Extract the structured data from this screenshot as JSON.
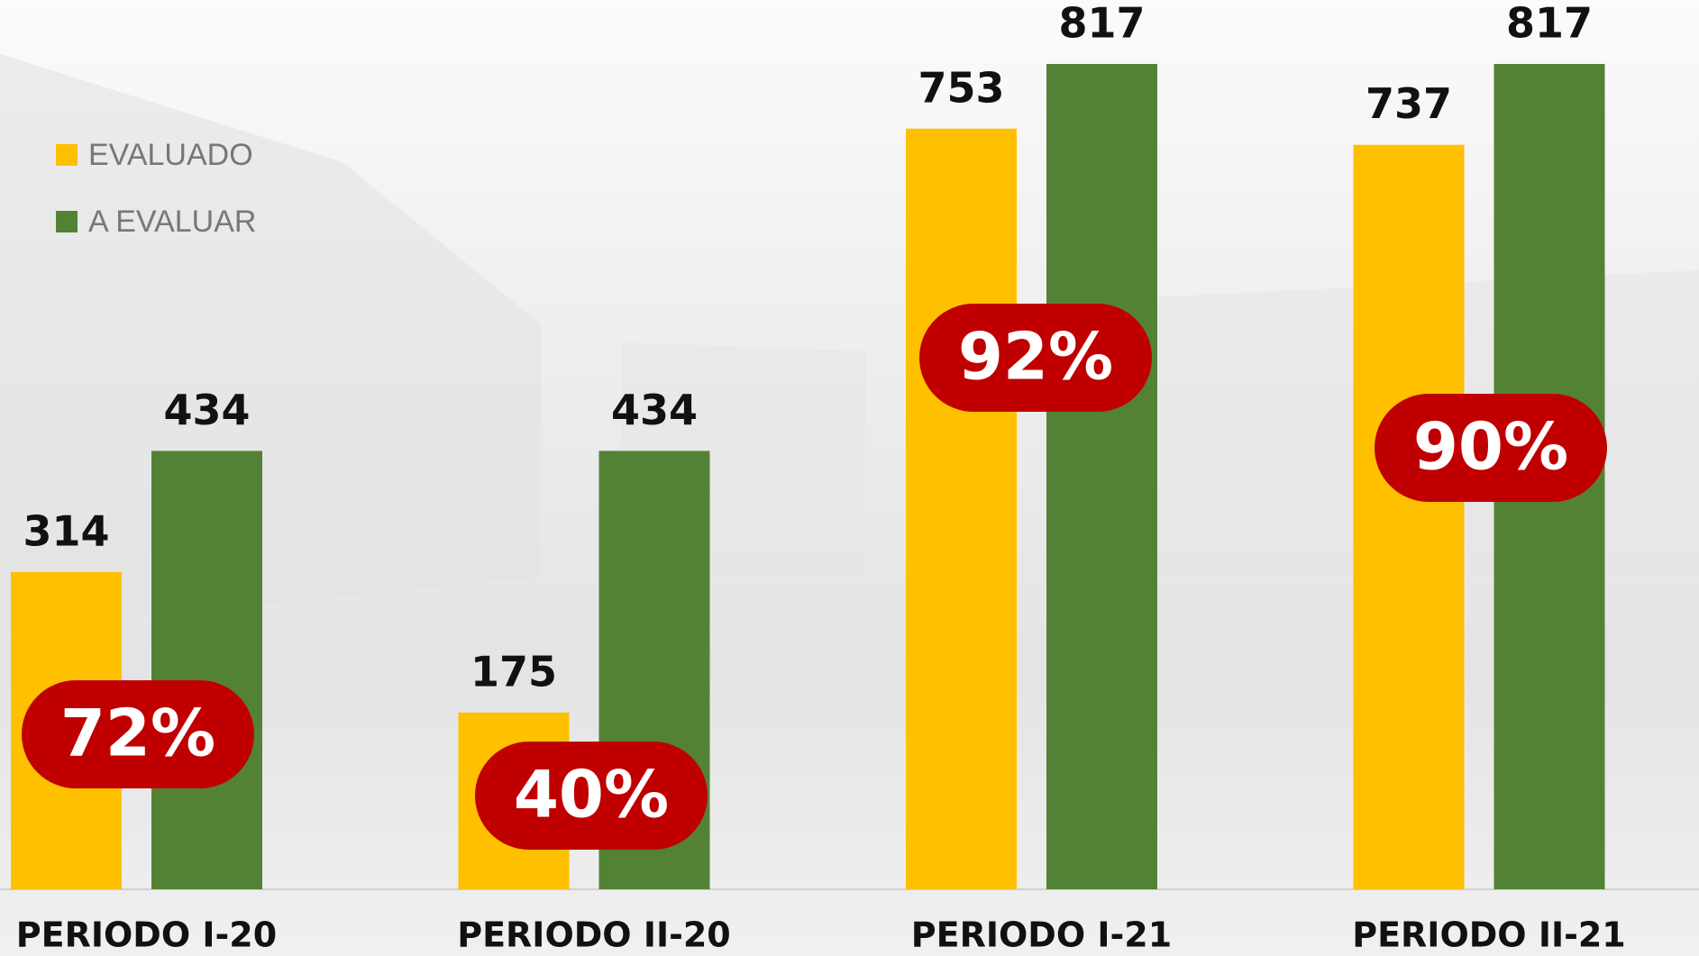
{
  "chart_data": {
    "type": "bar",
    "categories": [
      "PERIODO I-20",
      "PERIODO II-20",
      "PERIODO I-21",
      "PERIODO II-21"
    ],
    "series": [
      {
        "name": "EVALUADO",
        "color": "#ffc000",
        "values": [
          314,
          175,
          753,
          737
        ]
      },
      {
        "name": "A EVALUAR",
        "color": "#548235",
        "values": [
          434,
          434,
          817,
          817
        ]
      }
    ],
    "annotations": [
      "72%",
      "40%",
      "92%",
      "90%"
    ],
    "legend": "upper left"
  }
}
